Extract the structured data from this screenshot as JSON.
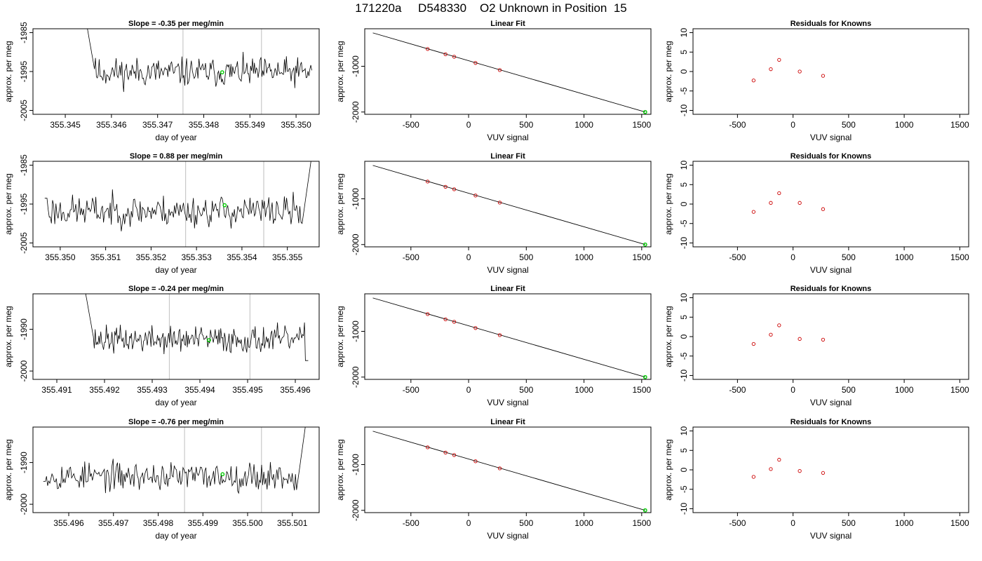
{
  "page": {
    "title": "171220a     D548330    O2 Unknown in Position  15"
  },
  "colors": {
    "trace": "#000000",
    "known_point": "#cc0000",
    "unknown_point": "#00cc00",
    "marker_line": "#c8c8c8"
  },
  "chart_data": [
    {
      "type": "line",
      "title": "Slope =  -0.35  per meg/min",
      "xlabel": "day of year",
      "ylabel": "approx. per meg",
      "xlim": [
        355.3443,
        355.3505
      ],
      "ylim": [
        -2006,
        -1984
      ],
      "xticks": [
        "355.345",
        "355.346",
        "355.347",
        "355.348",
        "355.349",
        "355.350"
      ],
      "xtick_values": [
        355.345,
        355.346,
        355.347,
        355.348,
        355.349,
        355.35
      ],
      "yticks": [
        "-1985",
        "-1995",
        "-2005"
      ],
      "ytick_values": [
        -1985,
        -1995,
        -2005
      ],
      "trace": {
        "x_start": 355.34545,
        "x_end": 355.35034,
        "y_start": -1982,
        "mean": -1995.2,
        "noise": 2.3,
        "start_shape": "spike-down",
        "end_shape": "flat",
        "seed": 11
      },
      "vlines": [
        355.34755,
        355.34925
      ],
      "unknown_point": {
        "x": 355.3484,
        "y": -1995.2
      }
    },
    {
      "type": "scatter",
      "title": "Linear Fit",
      "xlabel": "VUV signal",
      "ylabel": "approx. per meg",
      "xlim": [
        -900,
        1580
      ],
      "ylim": [
        -2050,
        -180
      ],
      "xticks": [
        "-500",
        "0",
        "500",
        "1000",
        "1500"
      ],
      "xtick_values": [
        -500,
        0,
        500,
        1000,
        1500
      ],
      "yticks": [
        "-1000",
        "-2000"
      ],
      "ytick_values": [
        -1000,
        -2000
      ],
      "fit_line": {
        "x": [
          -830,
          1530
        ],
        "y": [
          -270,
          -2000
        ]
      },
      "known_points": {
        "x": [
          -355,
          -200,
          -125,
          60,
          270
        ],
        "y": [
          -623,
          -737,
          -792,
          -928,
          -1082
        ]
      },
      "unknown_point": {
        "x": 1530,
        "y": -2000
      }
    },
    {
      "type": "scatter",
      "title": "Residuals for Knowns",
      "xlabel": "VUV signal",
      "ylabel": "approx. per meg",
      "xlim": [
        -900,
        1580
      ],
      "ylim": [
        -11,
        11
      ],
      "xticks": [
        "-500",
        "0",
        "500",
        "1000",
        "1500"
      ],
      "xtick_values": [
        -500,
        0,
        500,
        1000,
        1500
      ],
      "yticks": [
        "-10",
        "-5",
        "0",
        "5",
        "10"
      ],
      "ytick_values": [
        -10,
        -5,
        0,
        5,
        10
      ],
      "known_points": {
        "x": [
          -355,
          -200,
          -125,
          60,
          270
        ],
        "y": [
          -2.3,
          0.6,
          3.0,
          0.0,
          -1.1
        ]
      }
    },
    {
      "type": "line",
      "title": "Slope =  0.88  per meg/min",
      "xlabel": "day of year",
      "ylabel": "approx. per meg",
      "xlim": [
        355.3494,
        355.3557
      ],
      "ylim": [
        -2006,
        -1984
      ],
      "xticks": [
        "355.350",
        "355.351",
        "355.352",
        "355.353",
        "355.354",
        "355.355"
      ],
      "xtick_values": [
        355.35,
        355.351,
        355.352,
        355.353,
        355.354,
        355.355
      ],
      "yticks": [
        "-1985",
        "-1995",
        "-2005"
      ],
      "ytick_values": [
        -1985,
        -1995,
        -2005
      ],
      "trace": {
        "x_start": 355.34966,
        "x_end": 355.35552,
        "y_start": -1993.5,
        "mean": -1996.8,
        "noise": 2.5,
        "start_shape": "flat",
        "end_shape": "spike-up",
        "seed": 23
      },
      "vlines": [
        355.35276,
        355.35448
      ],
      "unknown_point": {
        "x": 355.35362,
        "y": -1995.3
      }
    },
    {
      "type": "scatter",
      "title": "Linear Fit",
      "xlabel": "VUV signal",
      "ylabel": "approx. per meg",
      "xlim": [
        -900,
        1580
      ],
      "ylim": [
        -2050,
        -180
      ],
      "xticks": [
        "-500",
        "0",
        "500",
        "1000",
        "1500"
      ],
      "xtick_values": [
        -500,
        0,
        500,
        1000,
        1500
      ],
      "yticks": [
        "-1000",
        "-2000"
      ],
      "ytick_values": [
        -1000,
        -2000
      ],
      "fit_line": {
        "x": [
          -830,
          1530
        ],
        "y": [
          -270,
          -2000
        ]
      },
      "known_points": {
        "x": [
          -355,
          -200,
          -125,
          60,
          270
        ],
        "y": [
          -623,
          -737,
          -792,
          -928,
          -1082
        ]
      },
      "unknown_point": {
        "x": 1530,
        "y": -2000
      }
    },
    {
      "type": "scatter",
      "title": "Residuals for Knowns",
      "xlabel": "VUV signal",
      "ylabel": "approx. per meg",
      "xlim": [
        -900,
        1580
      ],
      "ylim": [
        -11,
        11
      ],
      "xticks": [
        "-500",
        "0",
        "500",
        "1000",
        "1500"
      ],
      "xtick_values": [
        -500,
        0,
        500,
        1000,
        1500
      ],
      "yticks": [
        "-10",
        "-5",
        "0",
        "5",
        "10"
      ],
      "ytick_values": [
        -10,
        -5,
        0,
        5,
        10
      ],
      "known_points": {
        "x": [
          -355,
          -200,
          -125,
          60,
          270
        ],
        "y": [
          -2.0,
          0.3,
          2.8,
          0.3,
          -1.3
        ]
      }
    },
    {
      "type": "line",
      "title": "Slope =  -0.24  per meg/min",
      "xlabel": "day of year",
      "ylabel": "approx. per meg",
      "xlim": [
        355.4905,
        355.4965
      ],
      "ylim": [
        -2002,
        -1981.5
      ],
      "xticks": [
        "355.491",
        "355.492",
        "355.493",
        "355.494",
        "355.495",
        "355.496"
      ],
      "xtick_values": [
        355.491,
        355.492,
        355.493,
        355.494,
        355.495,
        355.496
      ],
      "yticks": [
        "-1990",
        "-2000"
      ],
      "ytick_values": [
        -1990,
        -2000
      ],
      "trace": {
        "x_start": 355.49159,
        "x_end": 355.49627,
        "y_start": -1980.5,
        "mean": -1992.5,
        "noise": 2.0,
        "start_shape": "spike-down",
        "end_shape": "dip",
        "seed": 37
      },
      "vlines": [
        355.49336,
        355.49505
      ],
      "unknown_point": {
        "x": 355.49419,
        "y": -1992.6
      }
    },
    {
      "type": "scatter",
      "title": "Linear Fit",
      "xlabel": "VUV signal",
      "ylabel": "approx. per meg",
      "xlim": [
        -900,
        1580
      ],
      "ylim": [
        -2050,
        -180
      ],
      "xticks": [
        "-500",
        "0",
        "500",
        "1000",
        "1500"
      ],
      "xtick_values": [
        -500,
        0,
        500,
        1000,
        1500
      ],
      "yticks": [
        "-1000",
        "-2000"
      ],
      "ytick_values": [
        -1000,
        -2000
      ],
      "fit_line": {
        "x": [
          -830,
          1530
        ],
        "y": [
          -270,
          -2000
        ]
      },
      "known_points": {
        "x": [
          -355,
          -200,
          -125,
          60,
          270
        ],
        "y": [
          -623,
          -737,
          -792,
          -928,
          -1082
        ]
      },
      "unknown_point": {
        "x": 1530,
        "y": -2000
      }
    },
    {
      "type": "scatter",
      "title": "Residuals for Knowns",
      "xlabel": "VUV signal",
      "ylabel": "approx. per meg",
      "xlim": [
        -900,
        1580
      ],
      "ylim": [
        -11,
        11
      ],
      "xticks": [
        "-500",
        "0",
        "500",
        "1000",
        "1500"
      ],
      "xtick_values": [
        -500,
        0,
        500,
        1000,
        1500
      ],
      "yticks": [
        "-10",
        "-5",
        "0",
        "5",
        "10"
      ],
      "ytick_values": [
        -10,
        -5,
        0,
        5,
        10
      ],
      "known_points": {
        "x": [
          -355,
          -200,
          -125,
          60,
          270
        ],
        "y": [
          -1.9,
          0.5,
          2.9,
          -0.6,
          -0.8
        ]
      }
    },
    {
      "type": "line",
      "title": "Slope =  -0.76  per meg/min",
      "xlabel": "day of year",
      "ylabel": "approx. per meg",
      "xlim": [
        355.4952,
        355.5016
      ],
      "ylim": [
        -2002,
        -1981.5
      ],
      "xticks": [
        "355.496",
        "355.497",
        "355.498",
        "355.499",
        "355.500",
        "355.501"
      ],
      "xtick_values": [
        355.496,
        355.497,
        355.498,
        355.499,
        355.5,
        355.501
      ],
      "yticks": [
        "-1990",
        "-2000"
      ],
      "ytick_values": [
        -1990,
        -2000
      ],
      "trace": {
        "x_start": 355.49543,
        "x_end": 355.50129,
        "y_start": -1994.5,
        "mean": -1993.3,
        "noise": 2.1,
        "start_shape": "flat",
        "end_shape": "spike-up",
        "seed": 53
      },
      "vlines": [
        355.49859,
        355.50031
      ],
      "unknown_point": {
        "x": 355.49944,
        "y": -1992.8
      }
    },
    {
      "type": "scatter",
      "title": "Linear Fit",
      "xlabel": "VUV signal",
      "ylabel": "approx. per meg",
      "xlim": [
        -900,
        1580
      ],
      "ylim": [
        -2050,
        -180
      ],
      "xticks": [
        "-500",
        "0",
        "500",
        "1000",
        "1500"
      ],
      "xtick_values": [
        -500,
        0,
        500,
        1000,
        1500
      ],
      "yticks": [
        "-1000",
        "-2000"
      ],
      "ytick_values": [
        -1000,
        -2000
      ],
      "fit_line": {
        "x": [
          -830,
          1530
        ],
        "y": [
          -270,
          -2000
        ]
      },
      "known_points": {
        "x": [
          -355,
          -200,
          -125,
          60,
          270
        ],
        "y": [
          -623,
          -737,
          -792,
          -928,
          -1082
        ]
      },
      "unknown_point": {
        "x": 1530,
        "y": -2000
      }
    },
    {
      "type": "scatter",
      "title": "Residuals for Knowns",
      "xlabel": "VUV signal",
      "ylabel": "approx. per meg",
      "xlim": [
        -900,
        1580
      ],
      "ylim": [
        -11,
        11
      ],
      "xticks": [
        "-500",
        "0",
        "500",
        "1000",
        "1500"
      ],
      "xtick_values": [
        -500,
        0,
        500,
        1000,
        1500
      ],
      "yticks": [
        "-10",
        "-5",
        "0",
        "5",
        "10"
      ],
      "ytick_values": [
        -10,
        -5,
        0,
        5,
        10
      ],
      "known_points": {
        "x": [
          -355,
          -200,
          -125,
          60,
          270
        ],
        "y": [
          -1.8,
          0.2,
          2.6,
          -0.3,
          -0.8
        ]
      }
    }
  ]
}
